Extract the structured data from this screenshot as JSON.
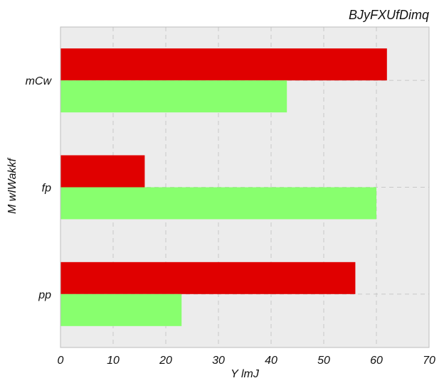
{
  "chart_data": {
    "type": "bar",
    "orientation": "horizontal",
    "title": "BJyFXUfDimq",
    "xlabel": "Y lmJ",
    "ylabel": "M wIWakkf",
    "categories": [
      "mCw",
      "fp",
      "pp"
    ],
    "series": [
      {
        "color": "#e00000",
        "values": [
          62,
          16,
          56
        ]
      },
      {
        "color": "#88ff6e",
        "values": [
          43,
          60,
          23
        ]
      }
    ],
    "xlim": [
      0,
      70
    ],
    "xticks": [
      0,
      10,
      20,
      30,
      40,
      50,
      60,
      70
    ],
    "grid": true,
    "legend": "none"
  },
  "style": {
    "plot_background": "#ececec",
    "grid_color": "#c8c8c8",
    "frame_color": "#bdbdbd"
  }
}
